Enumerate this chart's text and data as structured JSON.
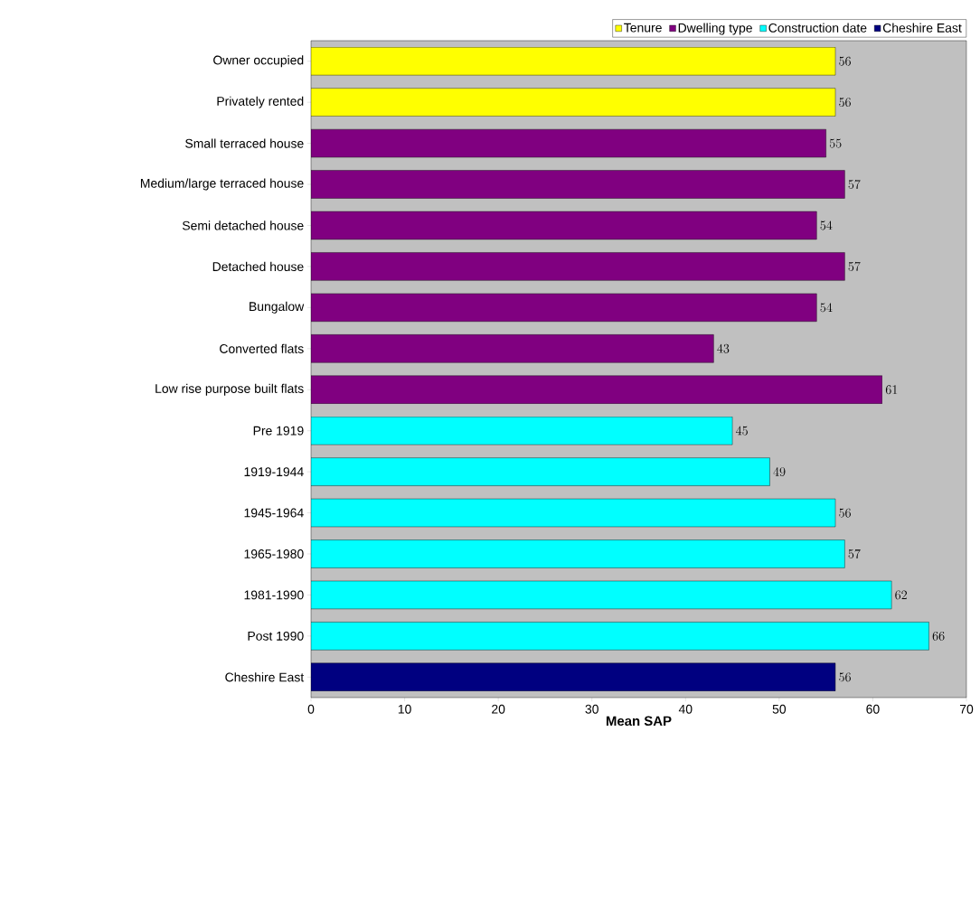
{
  "chart_data": {
    "type": "bar",
    "orientation": "horizontal",
    "xlabel": "**Mean SAP**",
    "categories": [
      "Owner occupied",
      "Privately rented",
      "Small terraced house",
      "Medium/large terraced house",
      "Semi detached house",
      "Detached house",
      "Bungalow",
      "Converted flats",
      "Low rise purpose built flats",
      "Pre 1919",
      "1919-1944",
      "1945-1964",
      "1965-1980",
      "1981-1990",
      "Post 1990",
      "Cheshire East"
    ],
    "series": [
      {
        "name": "Tenure",
        "color": "#ffff00",
        "values": [
          56,
          56,
          null,
          null,
          null,
          null,
          null,
          null,
          null,
          null,
          null,
          null,
          null,
          null,
          null,
          null
        ]
      },
      {
        "name": "Dwelling type",
        "color": "#800080",
        "values": [
          null,
          null,
          55,
          57,
          54,
          57,
          54,
          43,
          61,
          null,
          null,
          null,
          null,
          null,
          null,
          null
        ]
      },
      {
        "name": "Construction date",
        "color": "#00ffff",
        "values": [
          null,
          null,
          null,
          null,
          null,
          null,
          null,
          null,
          null,
          45,
          49,
          56,
          57,
          62,
          66,
          null
        ]
      },
      {
        "name": "Cheshire East",
        "color": "#000080",
        "values": [
          null,
          null,
          null,
          null,
          null,
          null,
          null,
          null,
          null,
          null,
          null,
          null,
          null,
          null,
          null,
          56
        ]
      }
    ],
    "xlim": [
      0,
      70
    ],
    "xticks": [
      0,
      10,
      20,
      30,
      40,
      50,
      60,
      70
    ],
    "data_labels": true,
    "legend": "top",
    "grid": false
  }
}
